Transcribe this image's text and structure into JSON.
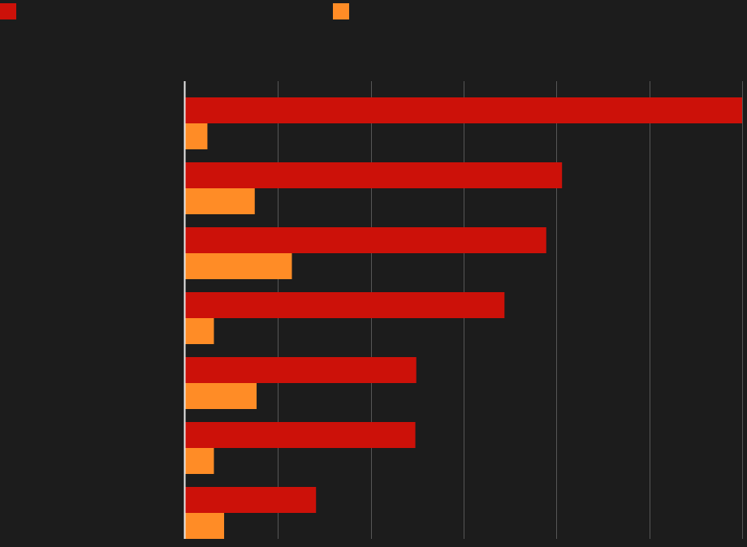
{
  "chart_data": {
    "type": "bar",
    "orientation": "horizontal",
    "title": "",
    "xlabel": "",
    "ylabel": "",
    "categories": [
      "",
      "",
      "",
      "",
      "",
      "",
      ""
    ],
    "series": [
      {
        "values": [
          6.0,
          4.06,
          3.89,
          3.44,
          2.49,
          2.48,
          1.41
        ],
        "color": "#cc1109"
      },
      {
        "values": [
          0.24,
          0.75,
          1.15,
          0.31,
          0.77,
          0.31,
          0.42
        ],
        "color": "#ff8c26"
      }
    ],
    "xlim": [
      0,
      6.0
    ],
    "x_gridlines": [
      1,
      2,
      3,
      4,
      5,
      6
    ],
    "grid": true,
    "legend": "top",
    "colors": {
      "background": "#1c1c1c",
      "grid": "#555555",
      "axis": "#e8e8e8"
    }
  }
}
